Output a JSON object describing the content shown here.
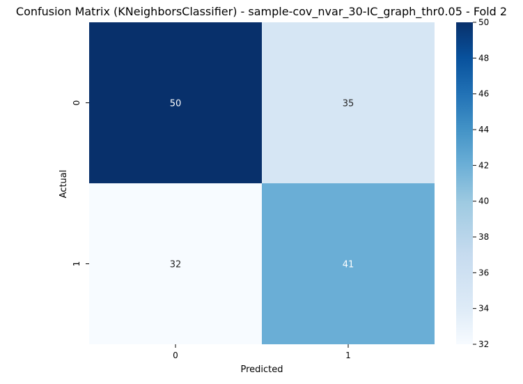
{
  "chart_data": {
    "type": "heatmap",
    "title": "Confusion Matrix (KNeighborsClassifier) - sample-cov_nvar_30-IC_graph_thr0.05 - Fold 2",
    "xlabel": "Predicted",
    "ylabel": "Actual",
    "x_categories": [
      "0",
      "1"
    ],
    "y_categories": [
      "0",
      "1"
    ],
    "values": [
      [
        50,
        35
      ],
      [
        32,
        41
      ]
    ],
    "colormap": "Blues",
    "colorbar": {
      "range": [
        32,
        50
      ],
      "ticks": [
        32,
        34,
        36,
        38,
        40,
        42,
        44,
        46,
        48,
        50
      ]
    },
    "colors": {
      "cell_0_0": "#08306b",
      "cell_0_1": "#d6e6f4",
      "cell_1_0": "#f7fbff",
      "cell_1_1": "#6aaed6"
    },
    "annotation_colors": {
      "light_text": "#ffffff",
      "dark_text": "#262626"
    },
    "grid": false
  }
}
